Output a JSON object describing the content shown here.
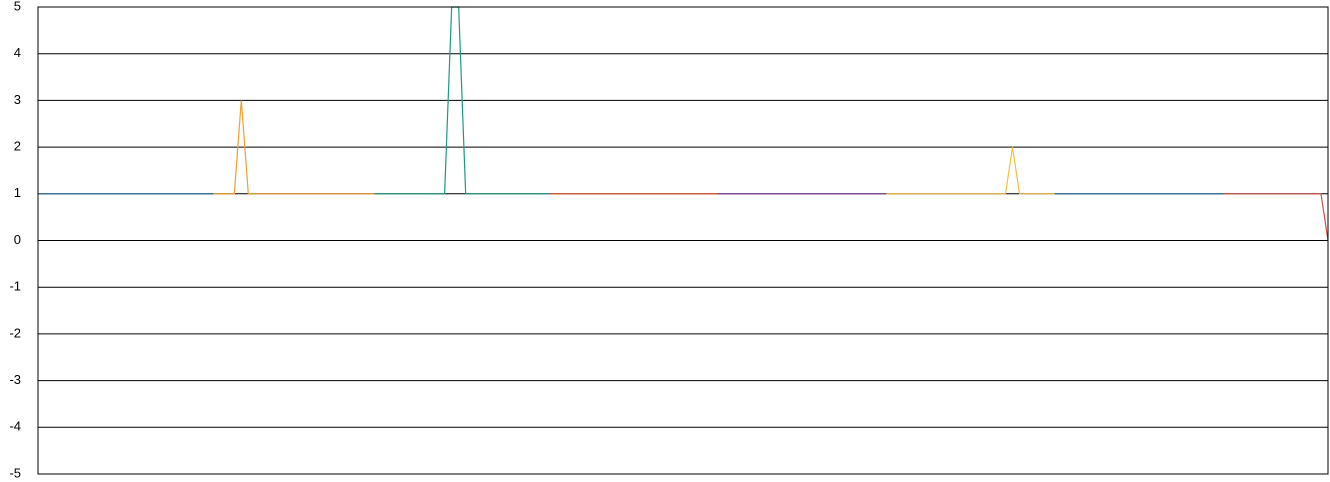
{
  "chart_data": {
    "type": "line",
    "xlim": [
      0,
      184
    ],
    "ylim": [
      -5,
      5
    ],
    "yticks": [
      -5,
      -4,
      -3,
      -2,
      -1,
      0,
      1,
      2,
      3,
      4,
      5
    ],
    "grid": true,
    "series": [
      {
        "color": "#2b6f9e",
        "x": [
          0,
          25
        ],
        "values": [
          1,
          1
        ]
      },
      {
        "color": "#f0a030",
        "x": [
          25,
          28,
          29,
          30,
          48
        ],
        "values": [
          1,
          1,
          3,
          1,
          1
        ]
      },
      {
        "color": "#1a9a80",
        "x": [
          48,
          58,
          59,
          60,
          61,
          73
        ],
        "values": [
          1,
          1,
          5,
          5,
          1,
          1
        ]
      },
      {
        "color": "#e0502a",
        "x": [
          73,
          97
        ],
        "values": [
          1,
          1
        ]
      },
      {
        "color": "#7a3e9a",
        "x": [
          97,
          121
        ],
        "values": [
          1,
          1
        ]
      },
      {
        "color": "#f2c040",
        "x": [
          121,
          138,
          139,
          140,
          145
        ],
        "values": [
          1,
          1,
          2,
          1,
          1
        ]
      },
      {
        "color": "#2b6f9e",
        "x": [
          145,
          169
        ],
        "values": [
          1,
          1
        ]
      },
      {
        "color": "#d0504a",
        "x": [
          169,
          183,
          184
        ],
        "values": [
          1,
          1,
          0
        ]
      }
    ]
  }
}
